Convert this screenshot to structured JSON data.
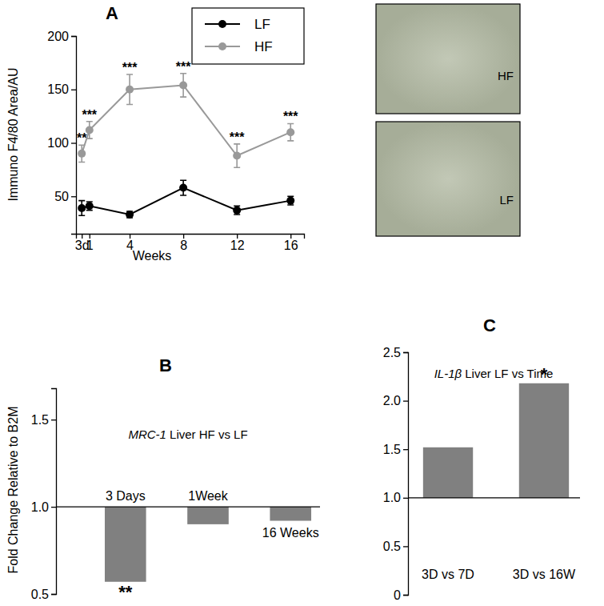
{
  "chart_data": [
    {
      "panel": "A",
      "type": "line",
      "x_label": "Weeks",
      "y_label": "Immuno F4/80 Area/AU",
      "x": [
        0.43,
        1,
        4,
        8,
        12,
        16
      ],
      "series": [
        {
          "name": "LF",
          "color": "#000000",
          "marker": "circle",
          "values": [
            39,
            41,
            33,
            58,
            37,
            46
          ],
          "errors": [
            7,
            4,
            3,
            7,
            4,
            4
          ]
        },
        {
          "name": "HF",
          "color": "#999999",
          "marker": "circle",
          "values": [
            90,
            112,
            150,
            154,
            88,
            110
          ],
          "errors": [
            8,
            8,
            14,
            11,
            11,
            8
          ],
          "significance": [
            "**",
            "***",
            "***",
            "***",
            "***",
            "***"
          ]
        }
      ],
      "xlim": [
        0,
        17
      ],
      "xticks": [
        {
          "value": 0.43,
          "label": "3d"
        },
        1,
        4,
        8,
        12,
        16
      ],
      "ylim": [
        15,
        200
      ],
      "yticks": [
        50,
        100,
        150,
        200
      ],
      "legend": "upper right"
    },
    {
      "panel": "B",
      "type": "bar",
      "title": "MRC-1 Liver HF vs LF",
      "y_label": "Fold Change Relative to B2M",
      "categories": [
        "3 Days",
        "1Week",
        "16 Weeks"
      ],
      "values": [
        0.57,
        0.9,
        0.92
      ],
      "baseline": 1,
      "significance": [
        "**",
        null,
        null
      ],
      "color": "#808080",
      "ylim": [
        0.5,
        1.68
      ],
      "yticks": [
        0.5,
        {
          "value": 1,
          "label": "1.0"
        },
        1.5
      ]
    },
    {
      "panel": "C",
      "type": "bar",
      "title": "IL-1β Liver LF vs Time",
      "categories": [
        "3D vs 7D",
        "3D vs 16W"
      ],
      "values": [
        1.52,
        2.18
      ],
      "baseline": 1,
      "significance": [
        null,
        "*"
      ],
      "color": "#808080",
      "ylim": [
        0,
        2.5
      ],
      "yticks": [
        0,
        0.5,
        {
          "value": 1,
          "label": "1.0"
        },
        1.5,
        {
          "value": 2,
          "label": "2.0"
        },
        2.5
      ]
    }
  ],
  "micrographs": [
    {
      "label": "HF"
    },
    {
      "label": "LF"
    }
  ]
}
